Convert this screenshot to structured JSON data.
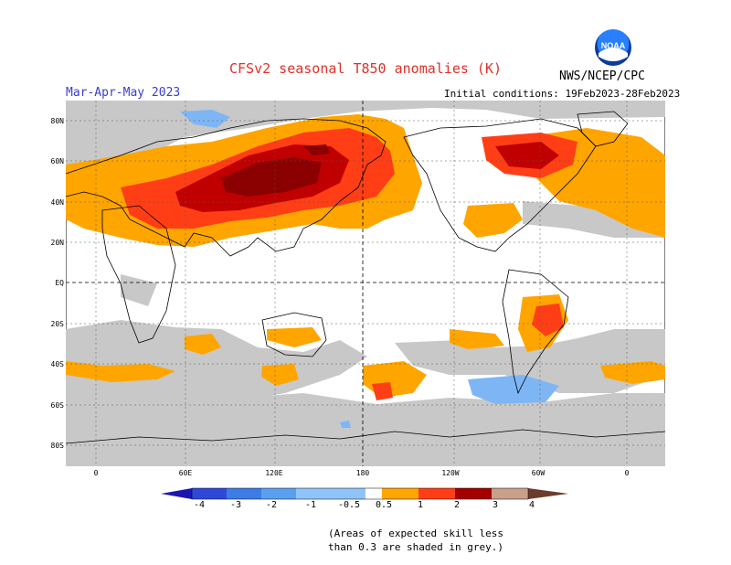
{
  "header": {
    "title": "CFSv2 seasonal T850 anomalies (K)",
    "period": "Mar-Apr-May 2023",
    "org": "NWS/NCEP/CPC",
    "initial_conditions": "Initial conditions: 19Feb2023-28Feb2023",
    "logo_text": "NOAA"
  },
  "map": {
    "lat_labels": [
      "80N",
      "60N",
      "40N",
      "20N",
      "EQ",
      "20S",
      "40S",
      "60S",
      "80S"
    ],
    "lon_labels": [
      "0",
      "60E",
      "120E",
      "180",
      "120W",
      "60W",
      "0"
    ],
    "colors": {
      "ocean_bg": "#ffffff",
      "land_frame": "#bdbdbd",
      "low_skill": "#c8c8c8",
      "pos_0_5": "#ffa500",
      "pos_1": "#ff3e16",
      "pos_2": "#c00000",
      "pos_3": "#8b0000",
      "neg_0_5": "#7eb6f5"
    }
  },
  "colorbar": {
    "labels": [
      "-4",
      "-3",
      "-2",
      "-1",
      "-0.5",
      "0.5",
      "1",
      "2",
      "3",
      "4"
    ],
    "colors": [
      "#1c16b0",
      "#2f48d9",
      "#3d7ce6",
      "#5aa0f0",
      "#8fc4fb",
      "#ffffff",
      "#ffa500",
      "#ff3e16",
      "#e0230a",
      "#a50000",
      "#c9a08a",
      "#6b3c2c"
    ]
  },
  "footnote": {
    "line1": "(Areas of expected skill less",
    "line2": "than 0.3 are shaded in grey.)"
  }
}
